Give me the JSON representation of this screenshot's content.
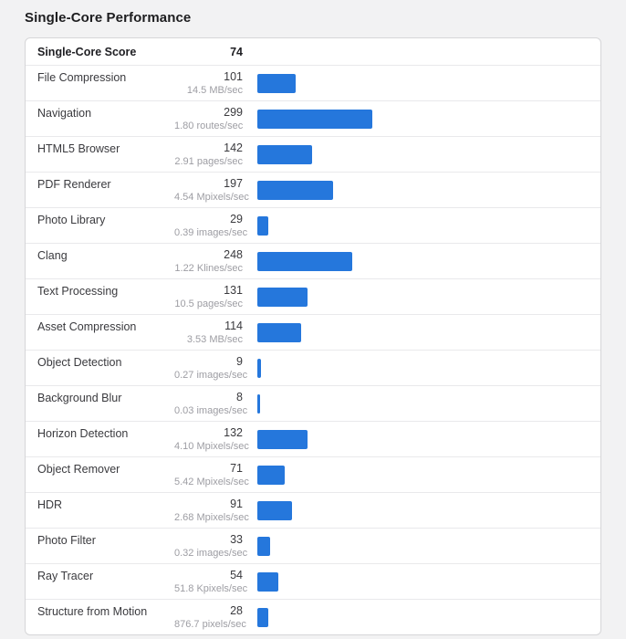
{
  "chart_data": {
    "type": "bar",
    "orientation": "horizontal",
    "title": "Single-Core Performance",
    "legend": "none",
    "xlim": [
      0,
      900
    ],
    "bar_color": "#2577dc",
    "summary": {
      "label": "Single-Core Score",
      "score": 74
    },
    "rows": [
      {
        "name": "File Compression",
        "score": 101,
        "rate": "14.5 MB/sec"
      },
      {
        "name": "Navigation",
        "score": 299,
        "rate": "1.80 routes/sec"
      },
      {
        "name": "HTML5 Browser",
        "score": 142,
        "rate": "2.91 pages/sec"
      },
      {
        "name": "PDF Renderer",
        "score": 197,
        "rate": "4.54 Mpixels/sec"
      },
      {
        "name": "Photo Library",
        "score": 29,
        "rate": "0.39 images/sec"
      },
      {
        "name": "Clang",
        "score": 248,
        "rate": "1.22 Klines/sec"
      },
      {
        "name": "Text Processing",
        "score": 131,
        "rate": "10.5 pages/sec"
      },
      {
        "name": "Asset Compression",
        "score": 114,
        "rate": "3.53 MB/sec"
      },
      {
        "name": "Object Detection",
        "score": 9,
        "rate": "0.27 images/sec"
      },
      {
        "name": "Background Blur",
        "score": 8,
        "rate": "0.03 images/sec"
      },
      {
        "name": "Horizon Detection",
        "score": 132,
        "rate": "4.10 Mpixels/sec"
      },
      {
        "name": "Object Remover",
        "score": 71,
        "rate": "5.42 Mpixels/sec"
      },
      {
        "name": "HDR",
        "score": 91,
        "rate": "2.68 Mpixels/sec"
      },
      {
        "name": "Photo Filter",
        "score": 33,
        "rate": "0.32 images/sec"
      },
      {
        "name": "Ray Tracer",
        "score": 54,
        "rate": "51.8 Kpixels/sec"
      },
      {
        "name": "Structure from Motion",
        "score": 28,
        "rate": "876.7 pixels/sec"
      }
    ]
  }
}
